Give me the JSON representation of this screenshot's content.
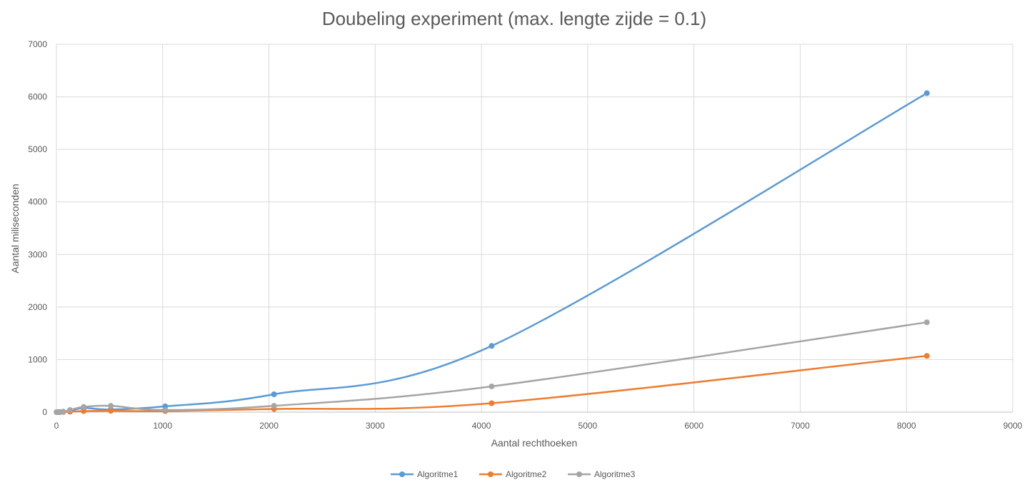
{
  "chart_data": {
    "type": "line",
    "title": "Doubeling experiment (max. lengte zijde = 0.1)",
    "xlabel": "Aantal rechthoeken",
    "ylabel": "Aantal miliseconden",
    "xlim": [
      0,
      9000
    ],
    "ylim": [
      0,
      7000
    ],
    "xticks": [
      0,
      1000,
      2000,
      3000,
      4000,
      5000,
      6000,
      7000,
      8000,
      9000
    ],
    "yticks": [
      0,
      1000,
      2000,
      3000,
      4000,
      5000,
      6000,
      7000
    ],
    "grid": true,
    "legend_position": "bottom",
    "x": [
      2,
      4,
      8,
      16,
      32,
      64,
      128,
      256,
      512,
      1024,
      2048,
      4096,
      8192
    ],
    "series": [
      {
        "name": "Algoritme1",
        "color": "#5B9BD5",
        "values": [
          0,
          0,
          0,
          0,
          1,
          5,
          20,
          80,
          50,
          110,
          340,
          1260,
          6070
        ]
      },
      {
        "name": "Algoritme2",
        "color": "#ED7D31",
        "values": [
          0,
          0,
          0,
          0,
          1,
          3,
          8,
          20,
          25,
          20,
          60,
          170,
          1070
        ]
      },
      {
        "name": "Algoritme3",
        "color": "#A5A5A5",
        "values": [
          0,
          0,
          0,
          0,
          2,
          10,
          40,
          100,
          120,
          40,
          120,
          490,
          1710
        ]
      }
    ]
  }
}
